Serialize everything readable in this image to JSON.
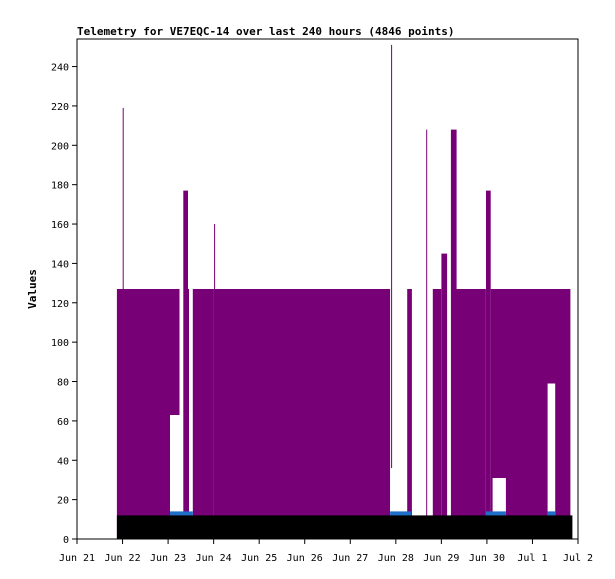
{
  "chart_data": {
    "type": "bar",
    "title": "Telemetry for VE7EQC-14 over last 240 hours (4846 points)",
    "ylabel": "Values",
    "xlabel": "",
    "ylim": [
      0,
      254
    ],
    "yticks": [
      0,
      20,
      40,
      60,
      80,
      100,
      120,
      140,
      160,
      180,
      200,
      220,
      240
    ],
    "xlim": [
      "2024-06-21",
      "2024-07-02"
    ],
    "xticks": [
      "Jun 21",
      "Jun 22",
      "Jun 23",
      "Jun 24",
      "Jun 25",
      "Jun 26",
      "Jun 27",
      "Jun 28",
      "Jun 29",
      "Jun 30",
      "Jul 1",
      "Jul 2"
    ],
    "grid": false,
    "colors": {
      "purple": "#770077",
      "blue": "#1f6fc8",
      "black": "#000000",
      "white": "#ffffff"
    },
    "series": [
      {
        "color": "purple",
        "points": [
          {
            "x": "Jun 21 21:00",
            "x2": "Jun 23 06:00",
            "y": 127
          },
          {
            "x": "Jun 22 00:05",
            "x2": "Jun 22 00:25",
            "y": 219
          },
          {
            "x": "Jun 23 08:00",
            "x2": "Jun 23 10:30",
            "y": 177
          },
          {
            "x": "Jun 23 10:30",
            "x2": "Jun 24 00:00",
            "y": 127
          },
          {
            "x": "Jun 24 00:15",
            "x2": "Jun 24 00:30",
            "y": 160
          },
          {
            "x": "Jun 24 00:00",
            "x2": "Jun 27 21:00",
            "y": 127
          },
          {
            "x": "Jun 27 21:30",
            "x2": "Jun 27 21:50",
            "y": 251
          },
          {
            "x": "Jun 28 06:00",
            "x2": "Jun 28 08:30",
            "y": 127
          },
          {
            "x": "Jun 28 16:00",
            "x2": "Jun 28 16:20",
            "y": 208
          },
          {
            "x": "Jun 28 19:30",
            "x2": "Jun 29 00:00",
            "y": 127
          },
          {
            "x": "Jun 29 00:00",
            "x2": "Jun 29 03:00",
            "y": 145
          },
          {
            "x": "Jun 29 05:00",
            "x2": "Jun 29 08:00",
            "y": 208
          },
          {
            "x": "Jun 29 08:00",
            "x2": "Jun 29 23:30",
            "y": 127
          },
          {
            "x": "Jun 29 23:30",
            "x2": "Jun 30 02:00",
            "y": 177
          },
          {
            "x": "Jun 30 02:00",
            "x2": "Jul 1 20:00",
            "y": 127
          }
        ]
      },
      {
        "color": "white",
        "points": [
          {
            "x": "Jun 23 01:00",
            "x2": "Jun 23 06:00",
            "y": 63
          },
          {
            "x": "Jun 23 11:00",
            "x2": "Jun 23 13:00",
            "y": 127
          },
          {
            "x": "Jun 27 21:00",
            "x2": "Jun 28 02:00",
            "y": 36
          },
          {
            "x": "Jun 30 03:00",
            "x2": "Jun 30 10:00",
            "y": 31
          },
          {
            "x": "Jul 1 08:00",
            "x2": "Jul 1 12:00",
            "y": 79
          }
        ]
      },
      {
        "color": "blue",
        "points": [
          {
            "x": "Jun 23 01:00",
            "x2": "Jun 23 13:00",
            "y": 14
          },
          {
            "x": "Jun 27 21:00",
            "x2": "Jun 28 08:00",
            "y": 14
          },
          {
            "x": "Jun 29 23:30",
            "x2": "Jun 30 10:00",
            "y": 14
          },
          {
            "x": "Jul 1 08:00",
            "x2": "Jul 1 12:00",
            "y": 14
          }
        ]
      },
      {
        "color": "black",
        "points": [
          {
            "x": "Jun 21 21:00",
            "x2": "Jul 1 21:00",
            "y": 12
          }
        ]
      }
    ]
  }
}
